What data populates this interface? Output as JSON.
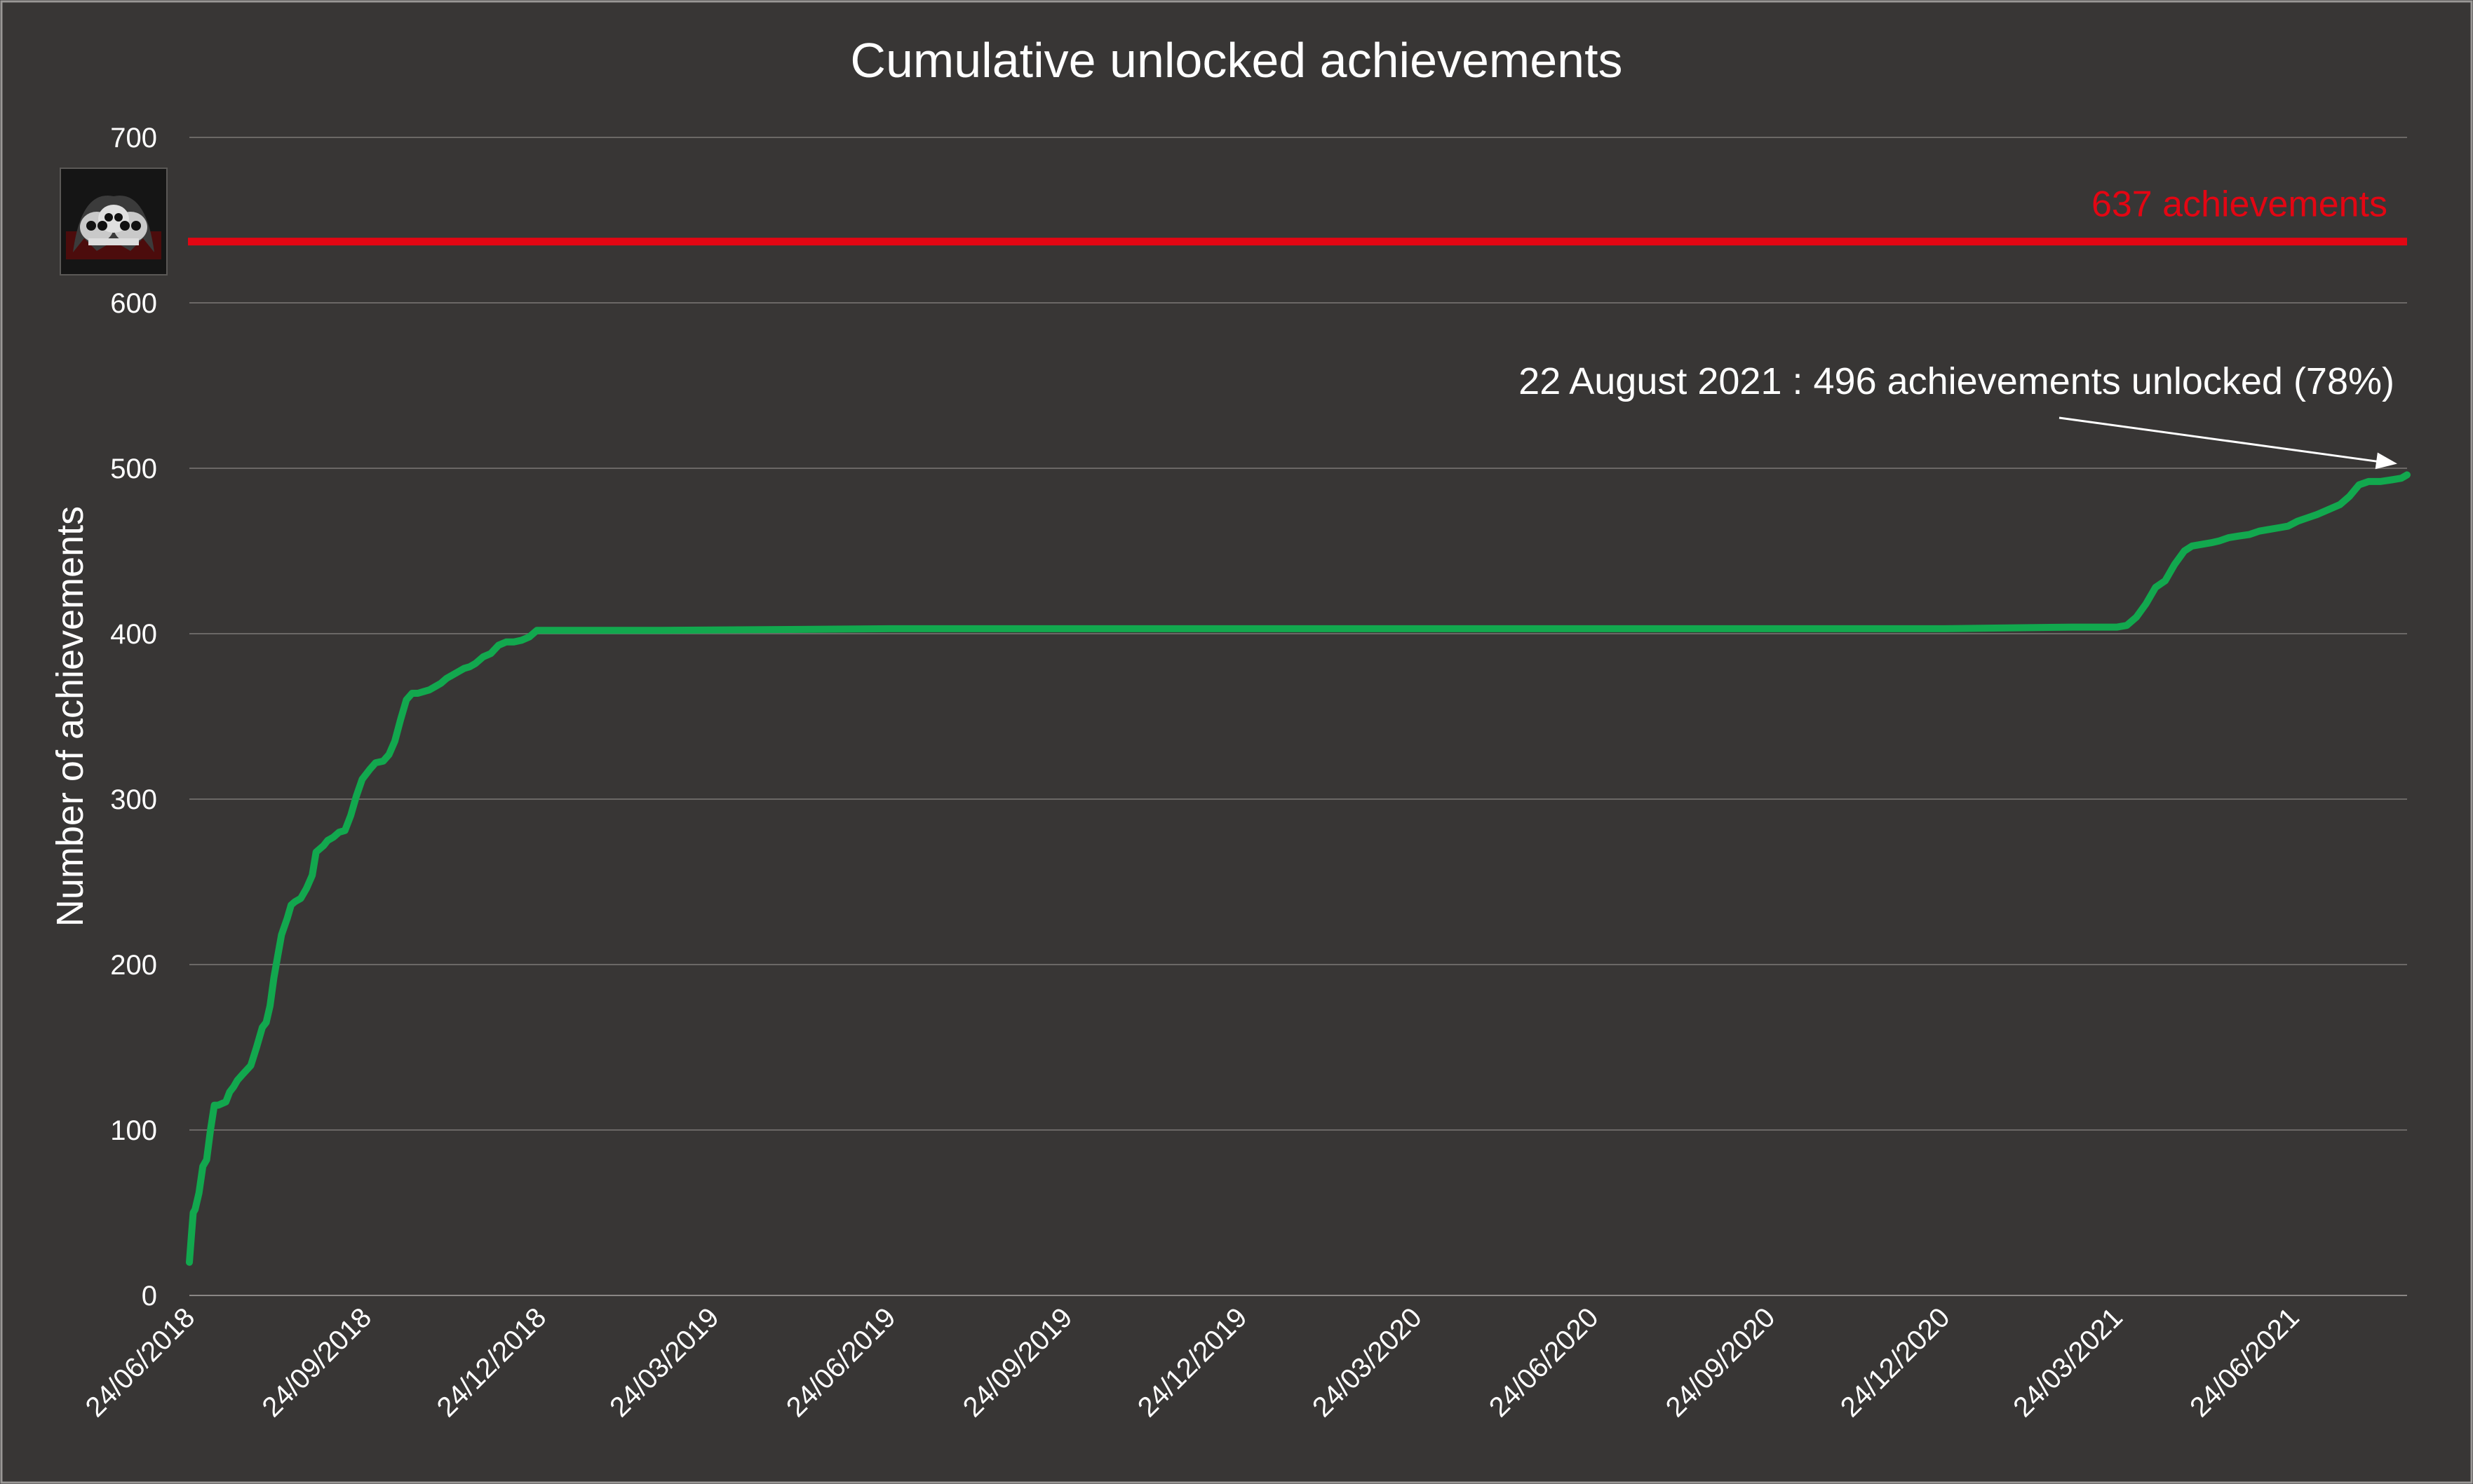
{
  "chart_data": {
    "type": "line",
    "title": "Cumulative unlocked achievements",
    "xlabel": "",
    "ylabel": "Number of achievements",
    "ylim": [
      0,
      700
    ],
    "yticks": [
      0,
      100,
      200,
      300,
      400,
      500,
      600,
      700
    ],
    "xlim": [
      "2018-06-24",
      "2021-08-22"
    ],
    "xtick_dates": [
      "2018-06-24",
      "2018-09-24",
      "2018-12-24",
      "2019-03-24",
      "2019-06-24",
      "2019-09-24",
      "2019-12-24",
      "2020-03-24",
      "2020-06-24",
      "2020-09-24",
      "2020-12-24",
      "2021-03-24",
      "2021-06-24"
    ],
    "xtick_labels": [
      "24/06/2018",
      "24/09/2018",
      "24/12/2018",
      "24/03/2019",
      "24/06/2019",
      "24/09/2019",
      "24/12/2019",
      "24/03/2020",
      "24/06/2020",
      "24/09/2020",
      "24/12/2020",
      "24/03/2021",
      "24/06/2021"
    ],
    "grid": true,
    "colors": {
      "background": "#383635",
      "series": "#12a84e",
      "reference": "#e30613",
      "text": "#ffffff",
      "grid": "#6b6866"
    },
    "reference_line": {
      "value": 637,
      "label": "637 achievements"
    },
    "annotation": {
      "text": "22 August 2021 : 496 achievements unlocked (78%)",
      "x": "2021-08-22",
      "y": 496
    },
    "logo_icon": "skull-game-icon",
    "series": [
      {
        "x": [
          "2018-06-24",
          "2018-06-25",
          "2018-06-26",
          "2018-06-27",
          "2018-06-29",
          "2018-07-01",
          "2018-07-03",
          "2018-07-05",
          "2018-07-07",
          "2018-07-09",
          "2018-07-13",
          "2018-07-15",
          "2018-07-17",
          "2018-07-19",
          "2018-07-22",
          "2018-07-26",
          "2018-07-29",
          "2018-08-01",
          "2018-08-03",
          "2018-08-05",
          "2018-08-07",
          "2018-08-09",
          "2018-08-11",
          "2018-08-14",
          "2018-08-16",
          "2018-08-18",
          "2018-08-21",
          "2018-08-24",
          "2018-08-27",
          "2018-08-29",
          "2018-09-02",
          "2018-09-04",
          "2018-09-07",
          "2018-09-10",
          "2018-09-13",
          "2018-09-16",
          "2018-09-19",
          "2018-09-22",
          "2018-09-26",
          "2018-09-29",
          "2018-10-03",
          "2018-10-06",
          "2018-10-09",
          "2018-10-12",
          "2018-10-15",
          "2018-10-18",
          "2018-10-21",
          "2018-10-24",
          "2018-10-27",
          "2018-10-30",
          "2018-11-02",
          "2018-11-05",
          "2018-11-08",
          "2018-11-11",
          "2018-11-14",
          "2018-11-17",
          "2018-11-20",
          "2018-11-24",
          "2018-11-28",
          "2018-12-02",
          "2018-12-06",
          "2018-12-10",
          "2018-12-14",
          "2018-12-18",
          "2018-12-22",
          "2018-12-27",
          "2019-01-01",
          "2019-01-06",
          "2019-01-10",
          "2019-01-14",
          "2019-01-20",
          "2019-01-26",
          "2019-02-02",
          "2019-02-06",
          "2019-02-10",
          "2019-02-15",
          "2019-02-20",
          "2019-02-24",
          "2019-06-24",
          "2019-12-24",
          "2020-06-24",
          "2020-12-24",
          "2021-03-01",
          "2021-03-24",
          "2021-03-29",
          "2021-04-03",
          "2021-04-08",
          "2021-04-13",
          "2021-04-18",
          "2021-04-23",
          "2021-04-28",
          "2021-05-02",
          "2021-05-07",
          "2021-05-12",
          "2021-05-16",
          "2021-05-21",
          "2021-05-26",
          "2021-06-01",
          "2021-06-06",
          "2021-06-11",
          "2021-06-16",
          "2021-06-21",
          "2021-06-26",
          "2021-07-01",
          "2021-07-06",
          "2021-07-12",
          "2021-07-18",
          "2021-07-23",
          "2021-07-28",
          "2021-08-02",
          "2021-08-08",
          "2021-08-14",
          "2021-08-19",
          "2021-08-22"
        ],
        "y": [
          20,
          35,
          50,
          52,
          62,
          78,
          82,
          100,
          115,
          115,
          117,
          123,
          126,
          130,
          134,
          139,
          150,
          162,
          165,
          175,
          192,
          205,
          218,
          228,
          236,
          238,
          240,
          246,
          254,
          268,
          272,
          275,
          277,
          280,
          281,
          290,
          302,
          312,
          318,
          322,
          323,
          327,
          335,
          348,
          360,
          364,
          364,
          365,
          366,
          368,
          370,
          373,
          375,
          377,
          379,
          380,
          382,
          386,
          388,
          393,
          395,
          395,
          396,
          398,
          402,
          402,
          402,
          402,
          402,
          402,
          402,
          402,
          402,
          402,
          402,
          402,
          402,
          402,
          403,
          403,
          403,
          403,
          404,
          404,
          405,
          410,
          418,
          428,
          432,
          442,
          450,
          453,
          454,
          455,
          456,
          458,
          459,
          460,
          462,
          463,
          464,
          465,
          468,
          470,
          472,
          475,
          478,
          483,
          490,
          492,
          492,
          493,
          494,
          496
        ]
      }
    ]
  }
}
